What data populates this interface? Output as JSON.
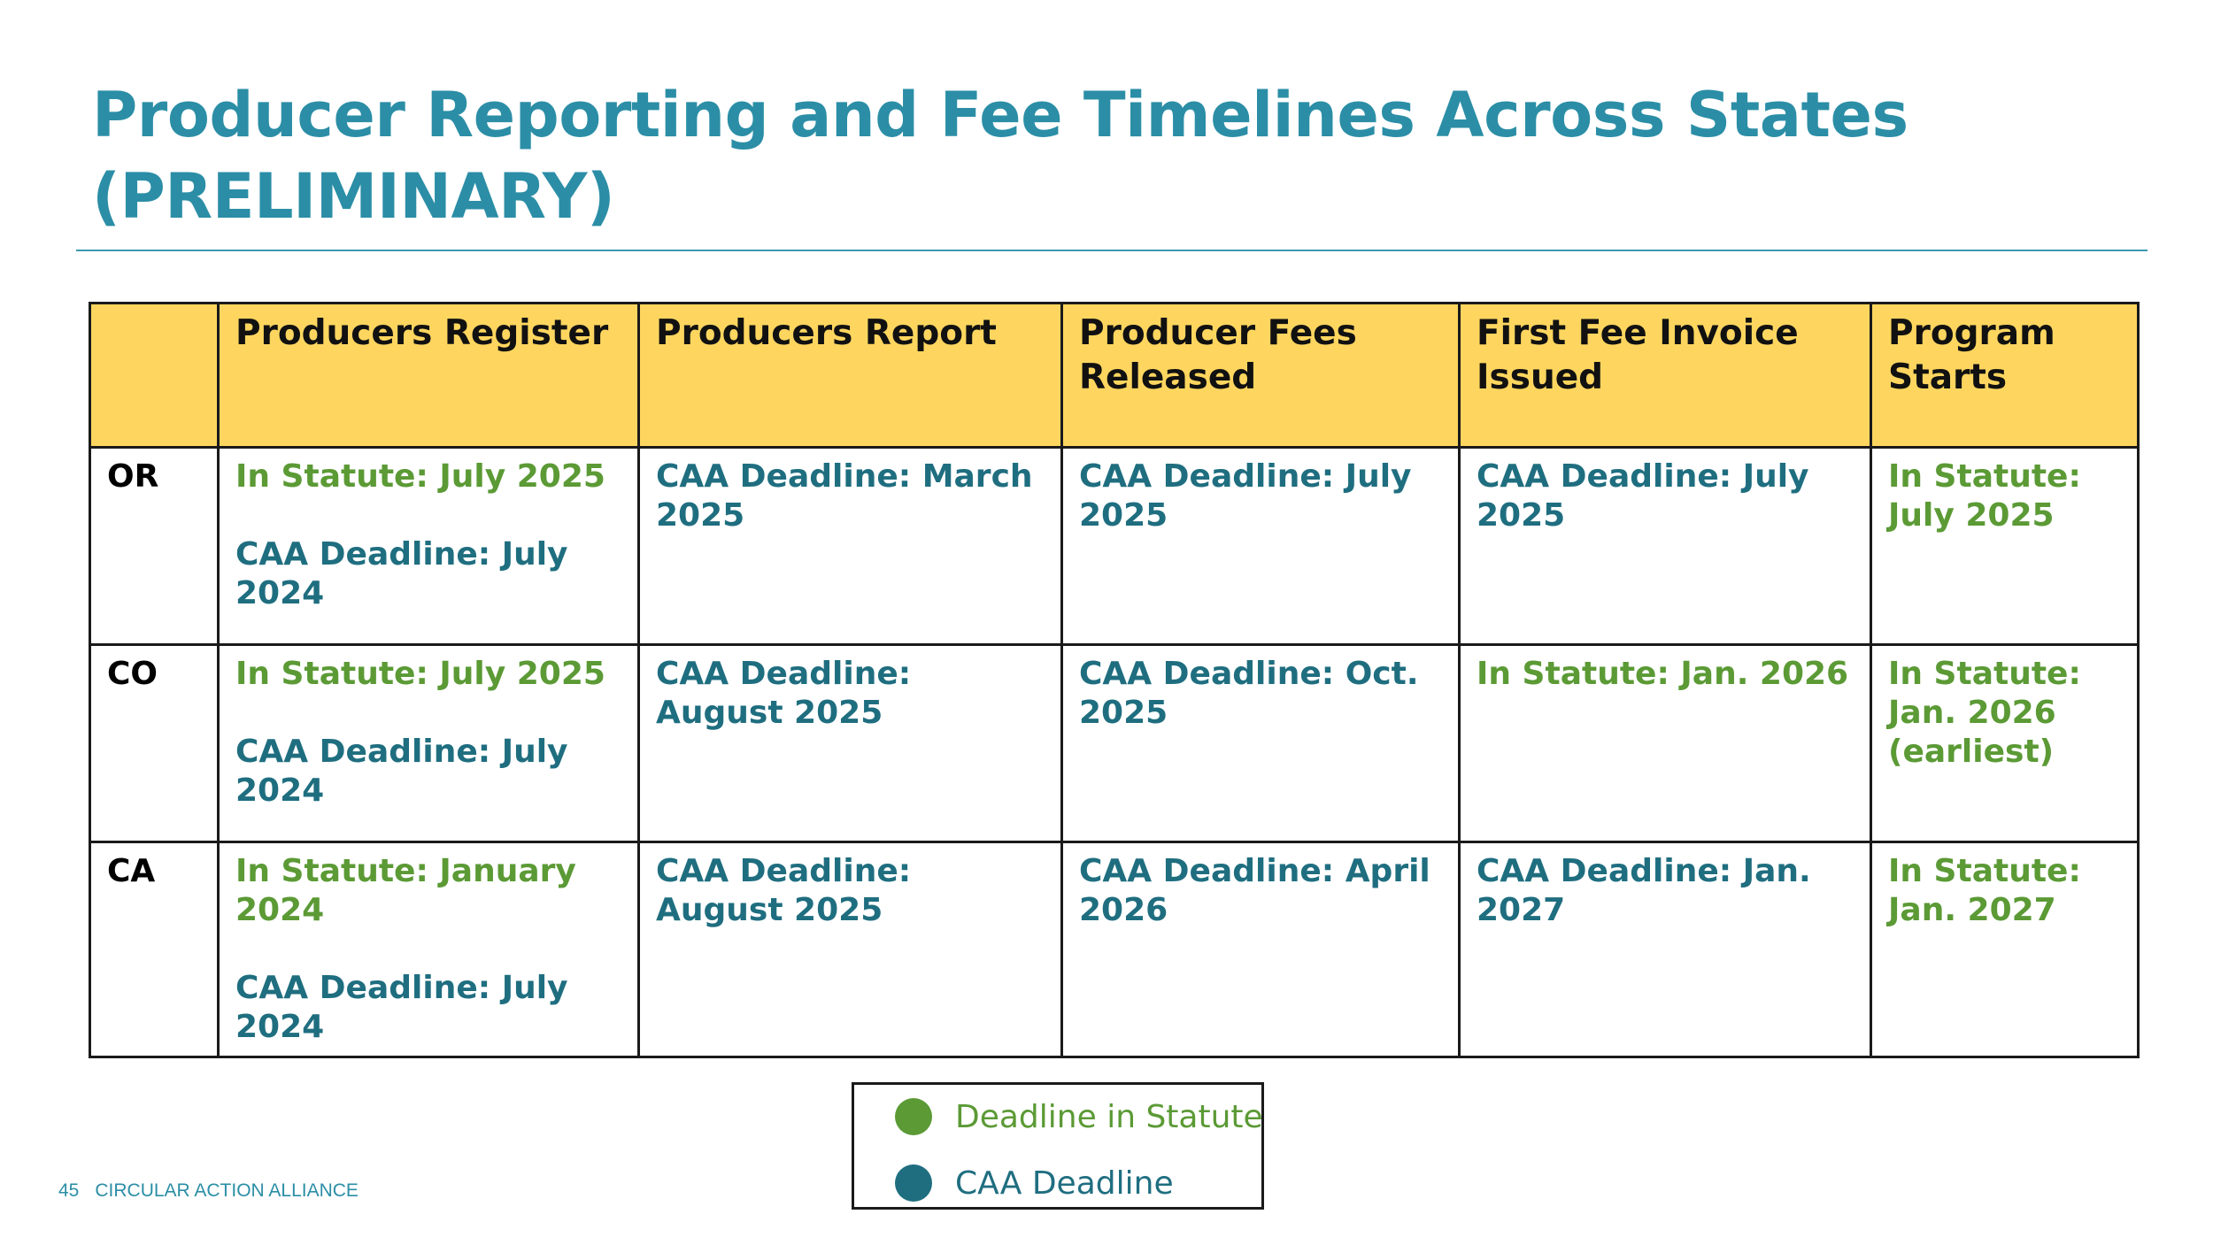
{
  "title": {
    "line1": "Producer Reporting and Fee Timelines Across States",
    "line2": "(PRELIMINARY)"
  },
  "table": {
    "headers": [
      "",
      "Producers Register",
      "Producers Report",
      "Producer Fees Released",
      "First Fee Invoice Issued",
      "Program Starts"
    ],
    "rows": [
      {
        "state": "OR",
        "register_statute": "In Statute: July 2025",
        "register_caa": "CAA Deadline: July 2024",
        "report": "CAA Deadline: March 2025",
        "fees": "CAA Deadline: July 2025",
        "invoice": "CAA Deadline: July 2025",
        "starts": "In Statute: July 2025"
      },
      {
        "state": "CO",
        "register_statute": "In Statute: July 2025",
        "register_caa": "CAA Deadline: July 2024",
        "report": "CAA Deadline: August 2025",
        "fees": "CAA Deadline: Oct. 2025",
        "invoice": "In Statute: Jan. 2026",
        "starts": "In Statute: Jan. 2026 (earliest)"
      },
      {
        "state": "CA",
        "register_statute": "In Statute: January 2024",
        "register_caa": "CAA Deadline: July 2024",
        "report": "CAA Deadline: August 2025",
        "fees": "CAA Deadline: April 2026",
        "invoice": "CAA Deadline: Jan. 2027",
        "starts": "In Statute: Jan. 2027"
      }
    ]
  },
  "legend": {
    "statute_label": "Deadline in Statute",
    "caa_label": "CAA Deadline"
  },
  "footer": {
    "page_number": "45",
    "organization": "CIRCULAR ACTION ALLIANCE"
  },
  "colors": {
    "title": "#2b8ea6",
    "header_fill": "#fed65f",
    "statute": "#5b9a35",
    "caa": "#1f6e80"
  }
}
